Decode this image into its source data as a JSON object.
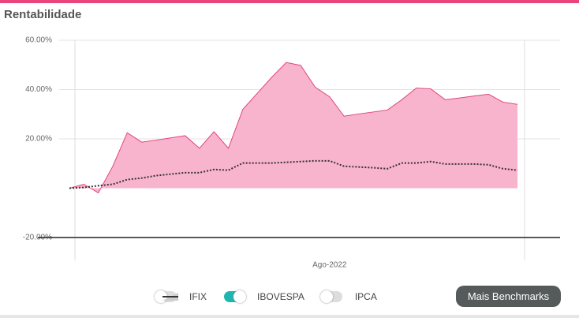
{
  "chart_data": {
    "type": "area",
    "title": "Rentabilidade",
    "categories": [
      null,
      null,
      null,
      null,
      null,
      null,
      null,
      null,
      null,
      null,
      null,
      null,
      null,
      null,
      null,
      null,
      null,
      null,
      "Ago-2022",
      null,
      null,
      null,
      null,
      null,
      null,
      null,
      null,
      null,
      null,
      null,
      null,
      null
    ],
    "series": [
      {
        "color": "#e0457b",
        "fill": "#f8b4cc",
        "style": "area",
        "values": [
          0,
          1.6,
          -1.9,
          8.9,
          22.5,
          18.7,
          19.5,
          20.4,
          21.3,
          16.2,
          22.9,
          16.2,
          32,
          38.5,
          45,
          51,
          49.8,
          41,
          37.1,
          29.2,
          30.1,
          30.9,
          31.7,
          35.9,
          40.6,
          40.3,
          35.9,
          36.6,
          37.4,
          38.1,
          34.9,
          34
        ]
      },
      {
        "color": "#333333",
        "style": "dotted",
        "values": [
          0,
          0.3,
          1,
          1.6,
          3.5,
          4.1,
          5.1,
          5.7,
          6.3,
          6.3,
          7.6,
          7.3,
          10.2,
          10.2,
          10.2,
          10.5,
          10.8,
          11.1,
          11.1,
          8.9,
          8.6,
          8.3,
          7.9,
          10.2,
          10.2,
          10.8,
          9.8,
          9.8,
          9.8,
          9.5,
          7.9,
          7.3
        ]
      }
    ],
    "ylim": [
      -20,
      60
    ],
    "yticks": [
      {
        "value": 60,
        "label": "60.00%"
      },
      {
        "value": 40,
        "label": "40.00%"
      },
      {
        "value": 20,
        "label": "20.00%"
      },
      {
        "value": -20,
        "label": "-20.00%"
      }
    ],
    "grid": true,
    "legend_items": [
      {
        "name": "IFIX",
        "on": false,
        "icon": "area"
      },
      {
        "name": "IBOVESPA",
        "on": true,
        "icon": "dotted"
      },
      {
        "name": "IPCA",
        "on": false,
        "icon": "line"
      }
    ],
    "button": "Mais Benchmarks"
  }
}
